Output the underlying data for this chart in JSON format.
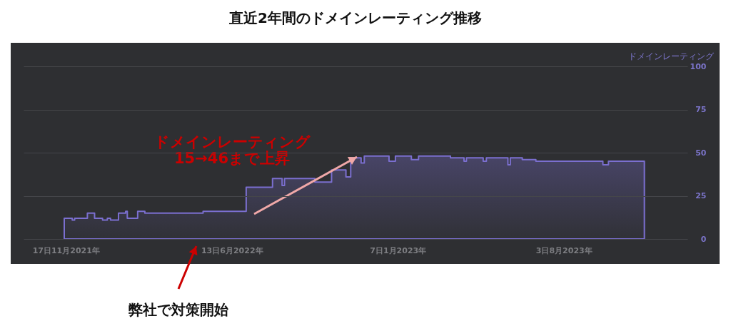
{
  "chart_data": {
    "type": "area",
    "title": "直近2年間のドメインレーティング推移",
    "ylabel": "ドメインレーティング",
    "x": [
      "2021-11-15",
      "2021-11-25",
      "2021-11-28",
      "2021-12-14",
      "2021-12-23",
      "2022-01-02",
      "2022-01-08",
      "2022-01-12",
      "2022-01-22",
      "2022-01-31",
      "2022-02-02",
      "2022-02-15",
      "2022-02-24",
      "2022-05-08",
      "2022-07-01",
      "2022-08-03",
      "2022-08-15",
      "2022-08-18",
      "2022-09-25",
      "2022-10-16",
      "2022-11-03",
      "2022-11-09",
      "2022-11-22",
      "2022-11-26",
      "2022-12-27",
      "2023-01-04",
      "2023-01-24",
      "2023-02-02",
      "2023-03-14",
      "2023-03-31",
      "2023-04-03",
      "2023-04-24",
      "2023-04-28",
      "2023-05-25",
      "2023-05-28",
      "2023-06-12",
      "2023-06-29",
      "2023-09-21",
      "2023-09-28",
      "2023-11-12"
    ],
    "series": [
      {
        "color": "#7b6fd0",
        "values": [
          12,
          11,
          12,
          15,
          12,
          11,
          12,
          11,
          15,
          16,
          12,
          16,
          15,
          16,
          30,
          35,
          31,
          35,
          33,
          40,
          36,
          47,
          44,
          48,
          45,
          48,
          46,
          48,
          47,
          45,
          47,
          45,
          47,
          43,
          47,
          46,
          45,
          43,
          45,
          45
        ]
      }
    ],
    "xlim": [
      "2021-09-25",
      "2024-01-05"
    ],
    "xticks": [
      {
        "value": "2021-11-17",
        "label": "17日11月2021年"
      },
      {
        "value": "2022-06-13",
        "label": "13日6月2022年"
      },
      {
        "value": "2023-01-07",
        "label": "7日1月2023年"
      },
      {
        "value": "2023-08-03",
        "label": "3日8月2023年"
      }
    ],
    "ylim": [
      0,
      100
    ],
    "yticks": [
      0,
      25,
      50,
      75,
      100
    ],
    "grid": "y",
    "annotations": [
      "ドメインレーティング\n15→46まで上昇",
      "弊社で対策開始"
    ]
  }
}
